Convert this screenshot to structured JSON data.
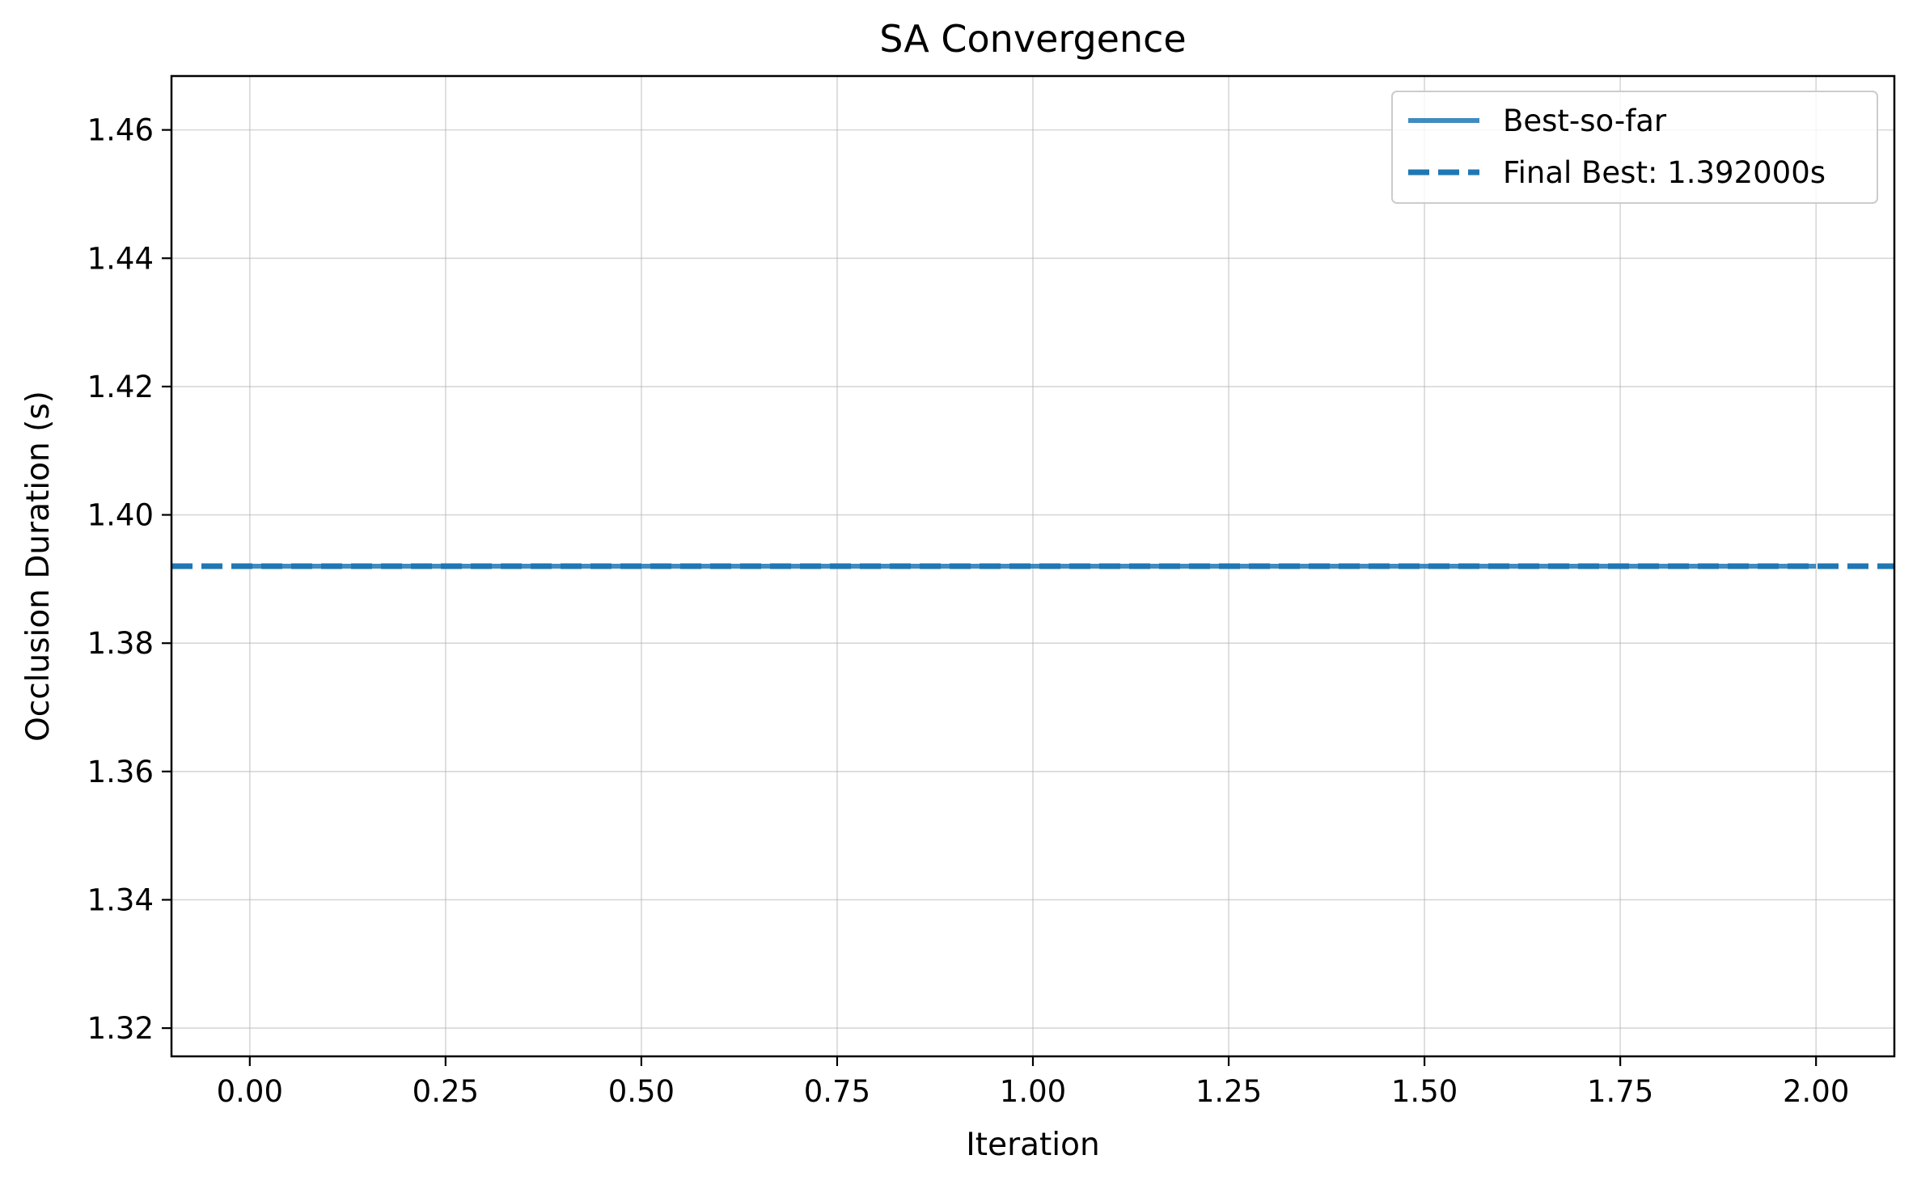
{
  "chart_data": {
    "type": "line",
    "title": "SA Convergence",
    "xlabel": "Iteration",
    "ylabel": "Occlusion Duration (s)",
    "xlim": [
      -0.1,
      2.1
    ],
    "ylim": [
      1.3156,
      1.4684
    ],
    "x_ticks": [
      0.0,
      0.25,
      0.5,
      0.75,
      1.0,
      1.25,
      1.5,
      1.75,
      2.0
    ],
    "x_tick_labels": [
      "0.00",
      "0.25",
      "0.50",
      "0.75",
      "1.00",
      "1.25",
      "1.50",
      "1.75",
      "2.00"
    ],
    "y_ticks": [
      1.32,
      1.34,
      1.36,
      1.38,
      1.4,
      1.42,
      1.44,
      1.46
    ],
    "y_tick_labels": [
      "1.32",
      "1.34",
      "1.36",
      "1.38",
      "1.40",
      "1.42",
      "1.44",
      "1.46"
    ],
    "grid": true,
    "legend_position": "top-right",
    "series": [
      {
        "name": "Best-so-far",
        "style": "solid",
        "color": "#1f77b4",
        "x": [
          0,
          1,
          2
        ],
        "y": [
          1.392,
          1.392,
          1.392
        ]
      }
    ],
    "reference_lines": [
      {
        "name": "Final Best: 1.392000s",
        "style": "dashed",
        "color": "#1f77b4",
        "y": 1.392
      }
    ]
  }
}
